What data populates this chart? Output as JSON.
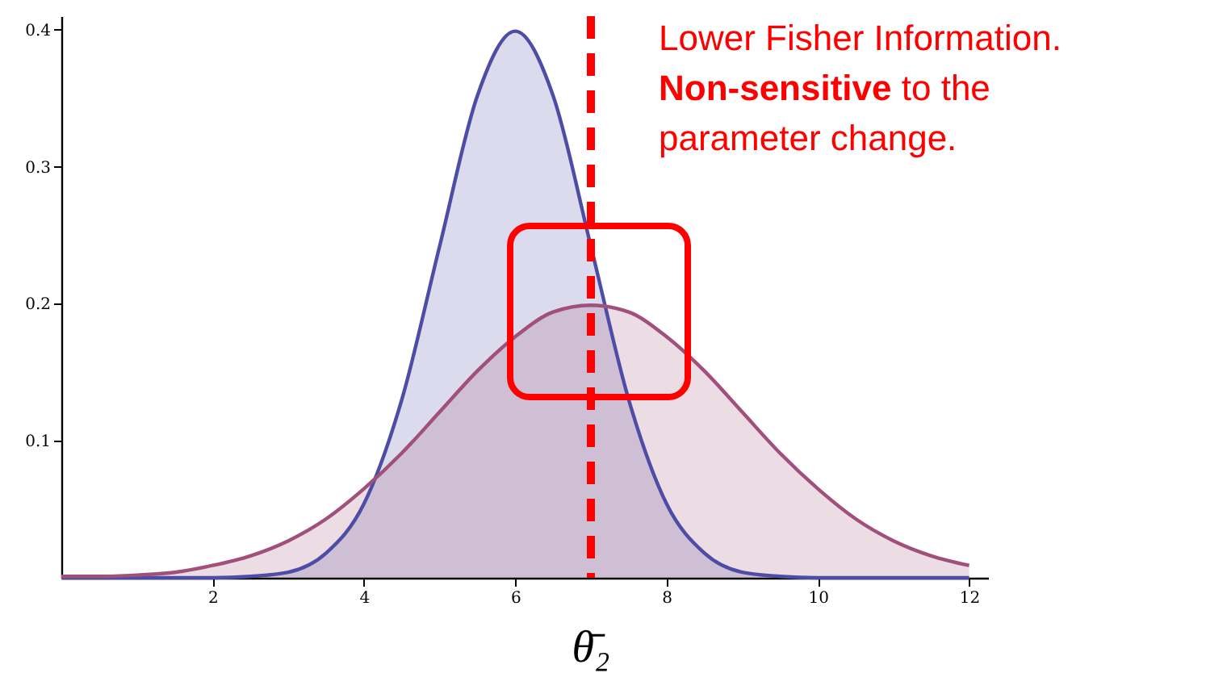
{
  "chart_data": {
    "type": "area",
    "x": [
      0,
      0.5,
      1,
      1.5,
      2,
      2.5,
      3,
      3.5,
      4,
      4.5,
      5,
      5.5,
      6,
      6.5,
      7,
      7.5,
      8,
      8.5,
      9,
      9.5,
      10,
      10.5,
      11,
      11.5,
      12
    ],
    "series": [
      {
        "color": "#4d4da6",
        "values": [
          0,
          0,
          0,
          0,
          0,
          0.001,
          0.004,
          0.018,
          0.054,
          0.13,
          0.242,
          0.352,
          0.399,
          0.352,
          0.242,
          0.13,
          0.054,
          0.018,
          0.004,
          0.001,
          0,
          0,
          0,
          0,
          0
        ]
      },
      {
        "color": "#a0507a",
        "values": [
          0.001,
          0.001,
          0.002,
          0.004,
          0.009,
          0.016,
          0.027,
          0.043,
          0.065,
          0.091,
          0.121,
          0.151,
          0.176,
          0.194,
          0.199,
          0.194,
          0.176,
          0.151,
          0.121,
          0.091,
          0.065,
          0.043,
          0.027,
          0.016,
          0.009
        ]
      }
    ],
    "xlim": [
      0,
      12.25
    ],
    "ylim": [
      0,
      0.41
    ],
    "xticks": [
      2,
      4,
      6,
      8,
      10,
      12
    ],
    "yticks": [
      0.1,
      0.2,
      0.3,
      0.4
    ],
    "grid": false,
    "ref_lines": [
      {
        "axis": "x",
        "value": 7,
        "label": "θ̄₂",
        "color": "#ff0000",
        "line_style": "dashed"
      }
    ],
    "annotations": [
      "Lower Fisher Information.",
      "Non-sensitive",
      "to the parameter change."
    ]
  }
}
